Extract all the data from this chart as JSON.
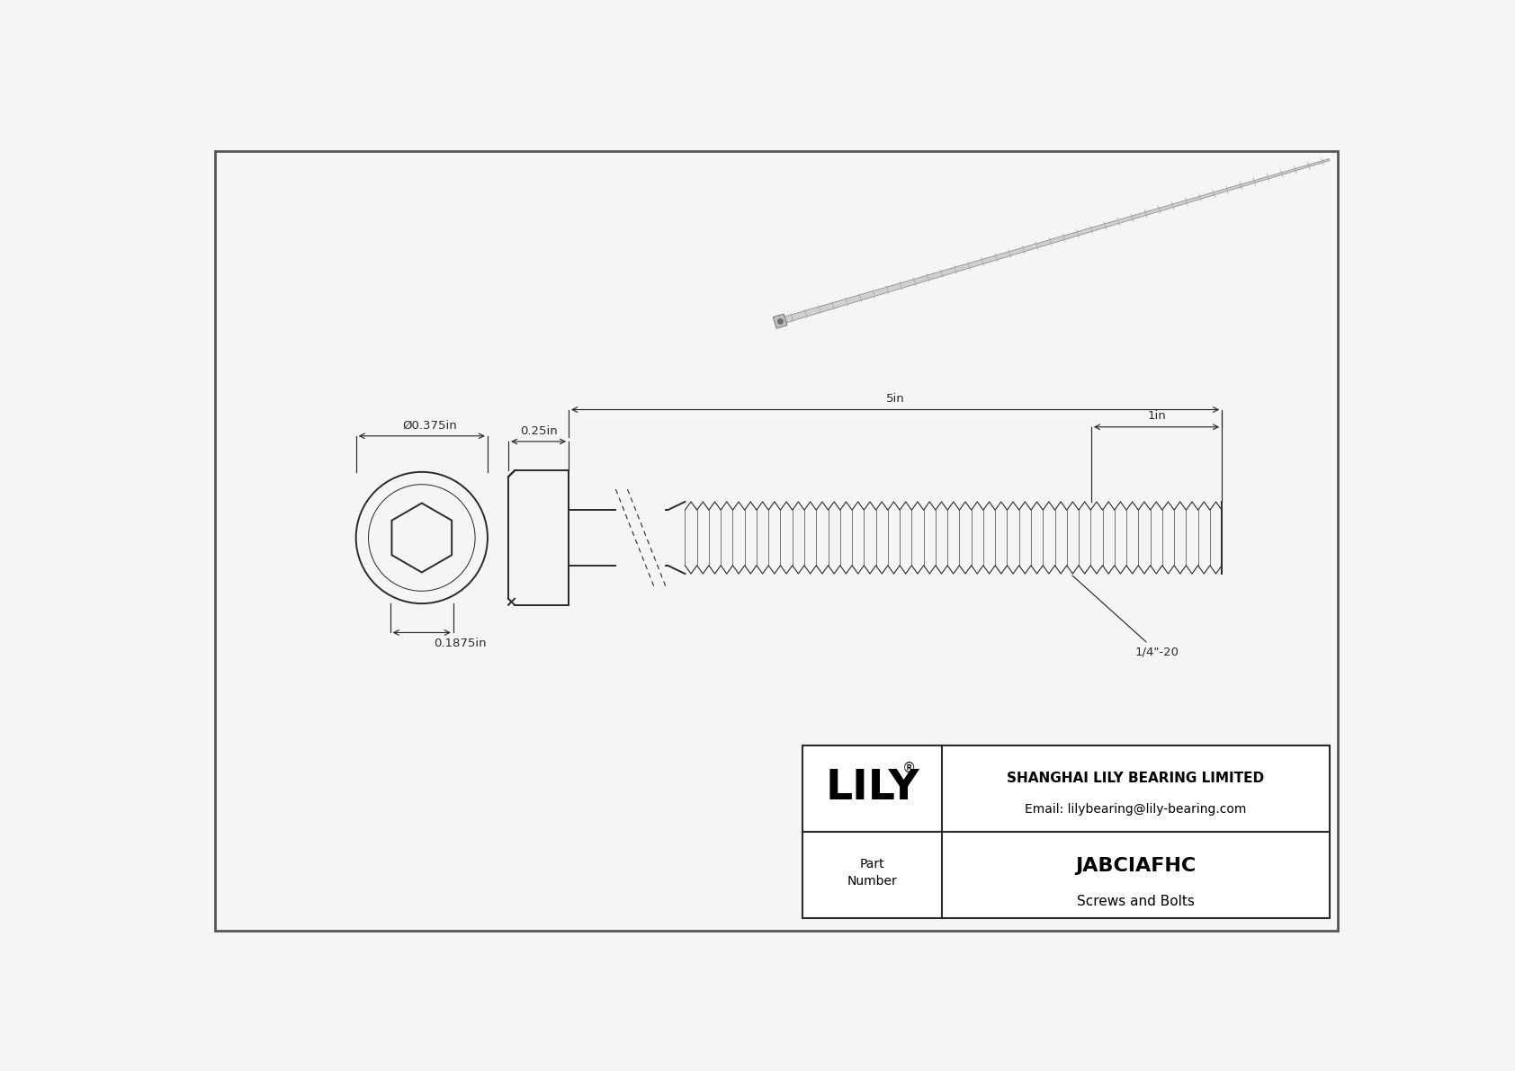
{
  "bg_color": "#f5f5f5",
  "line_color": "#2a2a2a",
  "dim_color": "#2a2a2a",
  "title_company": "SHANGHAI LILY BEARING LIMITED",
  "title_email": "Email: lilybearing@lily-bearing.com",
  "part_number": "JABCIAFHC",
  "part_category": "Screws and Bolts",
  "part_label": "Part\nNumber",
  "brand": "LILY",
  "dim_diameter": "Ø0.375in",
  "dim_head_length": "0.25in",
  "dim_total_length": "5in",
  "dim_thread_length": "1in",
  "dim_head_depth": "0.1875in",
  "thread_label": "1/4\"-20",
  "lw": 1.4,
  "thin_lw": 0.8,
  "dim_lw": 0.85,
  "fig_w": 16.84,
  "fig_h": 11.91
}
